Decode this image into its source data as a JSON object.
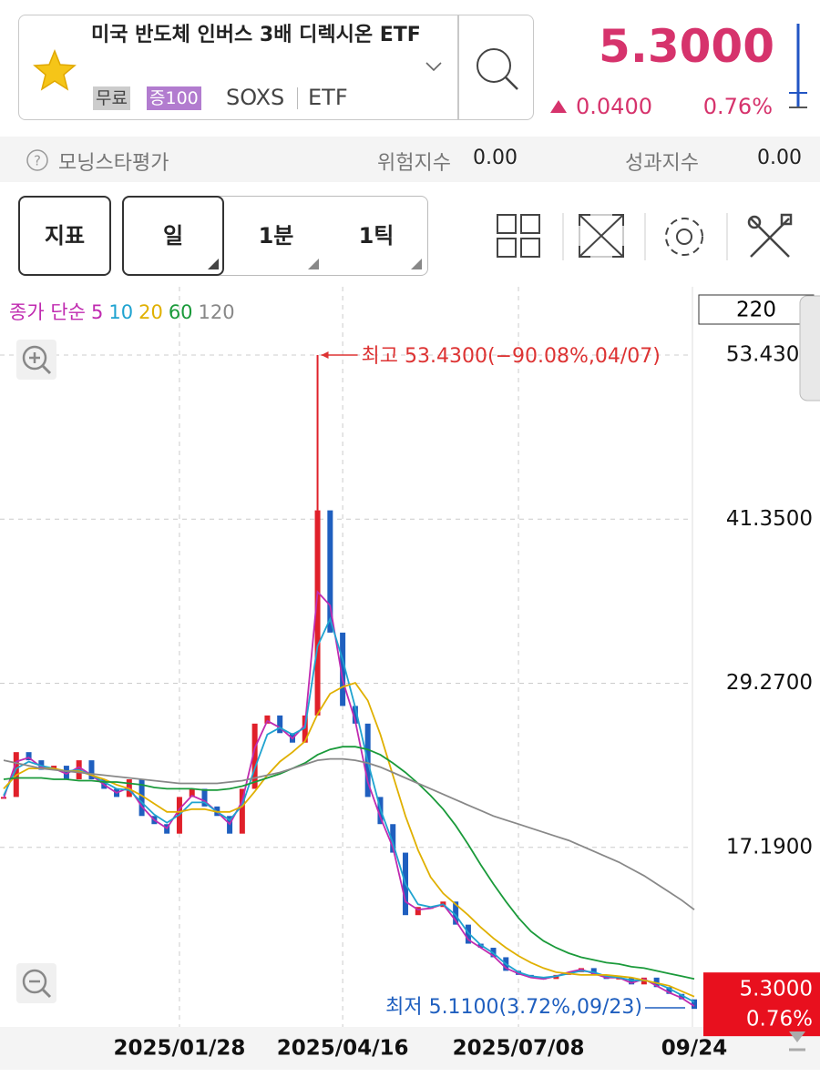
{
  "header": {
    "title": "미국 반도체 인버스 3배 디렉시온 ETF",
    "tags": [
      "무료",
      "증100"
    ],
    "code": "SOXS",
    "kind": "ETF",
    "price": "5.3000",
    "change": "0.0400",
    "change_pct": "0.76%"
  },
  "ratings": {
    "morningstar": "모닝스타평가",
    "risk_label": "위험지수",
    "risk_value": "0.00",
    "perf_label": "성과지수",
    "perf_value": "0.00"
  },
  "toolbar": {
    "indicator": "지표",
    "periods": [
      "일",
      "1분",
      "1틱"
    ]
  },
  "chart_data": {
    "type": "candlestick",
    "legend_title": "종가 단순",
    "visible_count": 220,
    "categories": [
      null,
      null,
      null,
      null,
      null,
      null,
      null,
      null,
      null,
      null,
      null,
      null,
      null,
      null,
      "2025/01/28",
      null,
      null,
      null,
      null,
      null,
      null,
      null,
      null,
      null,
      null,
      null,
      null,
      "2025/04/16",
      null,
      null,
      null,
      null,
      null,
      null,
      null,
      null,
      null,
      null,
      null,
      null,
      null,
      "2025/07/08",
      null,
      null,
      null,
      null,
      null,
      null,
      null,
      null,
      null,
      null,
      null,
      null,
      null,
      "09/24"
    ],
    "values": [
      20.9,
      24.2,
      23.6,
      22.9,
      23.2,
      22.2,
      23.6,
      22.2,
      21.5,
      20.9,
      22.2,
      19.5,
      18.9,
      18.2,
      20.9,
      21.5,
      20.2,
      19.5,
      18.2,
      21.5,
      26.3,
      26.9,
      25.6,
      24.9,
      26.9,
      42.0,
      33.0,
      27.6,
      26.3,
      20.9,
      18.9,
      16.8,
      12.2,
      12.8,
      12.8,
      13.2,
      11.5,
      10.1,
      9.8,
      9.1,
      8.1,
      7.8,
      7.6,
      7.5,
      7.8,
      8.0,
      8.3,
      7.8,
      7.5,
      7.6,
      7.1,
      7.6,
      6.9,
      6.4,
      6.0,
      5.3
    ],
    "up_color": "#e0202a",
    "down_color": "#1f5fbf",
    "series": [
      {
        "name": "5",
        "color": "#c02bb0",
        "values": [
          20.8,
          23.5,
          23.8,
          23.1,
          23.0,
          22.6,
          23.1,
          22.5,
          21.8,
          21.2,
          21.6,
          20.2,
          19.2,
          18.6,
          20.0,
          21.0,
          20.6,
          19.8,
          18.9,
          20.6,
          24.5,
          26.5,
          26.0,
          25.2,
          26.2,
          36.0,
          35.0,
          29.5,
          26.5,
          22.0,
          19.4,
          17.2,
          13.2,
          12.6,
          12.7,
          13.0,
          11.8,
          10.4,
          9.8,
          9.2,
          8.3,
          7.9,
          7.6,
          7.5,
          7.7,
          8.0,
          8.2,
          7.9,
          7.6,
          7.6,
          7.2,
          7.5,
          7.0,
          6.5,
          6.1,
          5.5
        ]
      },
      {
        "name": "10",
        "color": "#1fa3d0",
        "values": [
          21.0,
          23.0,
          23.5,
          23.2,
          23.0,
          22.8,
          22.9,
          22.5,
          22.0,
          21.5,
          21.4,
          20.5,
          19.6,
          19.0,
          19.6,
          20.5,
          20.5,
          19.8,
          19.2,
          20.3,
          23.0,
          25.5,
          26.0,
          25.5,
          26.0,
          32.0,
          34.0,
          31.0,
          27.5,
          23.5,
          20.0,
          17.5,
          14.5,
          13.0,
          12.8,
          13.0,
          12.2,
          10.9,
          10.0,
          9.4,
          8.6,
          8.0,
          7.7,
          7.6,
          7.7,
          7.9,
          8.1,
          8.0,
          7.7,
          7.6,
          7.4,
          7.4,
          7.2,
          6.8,
          6.3,
          5.8
        ]
      },
      {
        "name": "20",
        "color": "#e0b000",
        "values": [
          21.5,
          22.5,
          23.0,
          23.0,
          23.0,
          22.8,
          22.8,
          22.5,
          22.2,
          21.8,
          21.5,
          21.0,
          20.4,
          19.8,
          19.8,
          20.0,
          20.0,
          19.8,
          19.8,
          20.2,
          21.3,
          22.5,
          23.5,
          24.2,
          25.0,
          27.0,
          28.5,
          29.0,
          29.3,
          28.0,
          25.5,
          22.5,
          19.5,
          17.0,
          15.0,
          13.8,
          13.0,
          12.2,
          11.3,
          10.5,
          9.8,
          9.2,
          8.7,
          8.3,
          8.0,
          7.9,
          7.8,
          7.8,
          7.8,
          7.7,
          7.6,
          7.4,
          7.2,
          7.0,
          6.6,
          6.2
        ]
      },
      {
        "name": "60",
        "color": "#1a9a3a",
        "values": [
          22.2,
          22.3,
          22.3,
          22.3,
          22.2,
          22.2,
          22.1,
          22.1,
          22.0,
          22.0,
          21.9,
          21.8,
          21.6,
          21.5,
          21.5,
          21.5,
          21.4,
          21.4,
          21.5,
          21.7,
          22.0,
          22.3,
          22.6,
          23.0,
          23.4,
          24.0,
          24.4,
          24.6,
          24.6,
          24.4,
          24.0,
          23.4,
          22.7,
          21.9,
          21.0,
          20.0,
          18.8,
          17.4,
          15.9,
          14.5,
          13.2,
          12.0,
          11.0,
          10.3,
          9.8,
          9.4,
          9.1,
          8.9,
          8.7,
          8.6,
          8.4,
          8.3,
          8.1,
          7.9,
          7.7,
          7.5
        ]
      },
      {
        "name": "120",
        "color": "#888888",
        "values": [
          23.6,
          23.4,
          23.2,
          23.0,
          22.9,
          22.8,
          22.7,
          22.6,
          22.5,
          22.4,
          22.3,
          22.2,
          22.1,
          22.0,
          21.9,
          21.9,
          21.9,
          21.9,
          22.0,
          22.1,
          22.3,
          22.5,
          22.7,
          23.0,
          23.3,
          23.6,
          23.7,
          23.7,
          23.6,
          23.4,
          23.1,
          22.7,
          22.3,
          21.9,
          21.5,
          21.1,
          20.7,
          20.3,
          19.9,
          19.5,
          19.2,
          18.9,
          18.6,
          18.3,
          18.0,
          17.7,
          17.3,
          16.9,
          16.5,
          16.1,
          15.6,
          15.1,
          14.5,
          13.9,
          13.3,
          12.6
        ]
      }
    ],
    "ylim": [
      3.97,
      58.46
    ],
    "yticks": [
      {
        "value": 53.43,
        "label": "53.4300"
      },
      {
        "value": 41.35,
        "label": "41.3500"
      },
      {
        "value": 29.27,
        "label": "29.2700"
      },
      {
        "value": 17.19,
        "label": "17.1900"
      }
    ],
    "grid": true,
    "high_annotation": "최고 53.4300(−90.08%,04/07)",
    "high_value": 53.43,
    "low_annotation": "최저 5.1100(3.72%,09/23)",
    "low_value": 5.11,
    "price_tag": "5.3000",
    "price_tag_change": "0.76%"
  }
}
